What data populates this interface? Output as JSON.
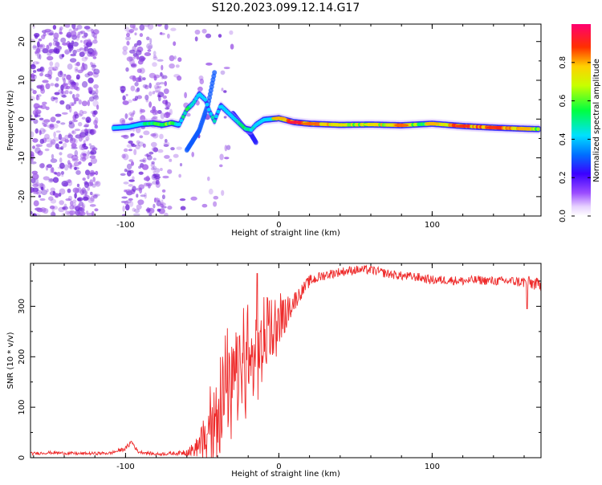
{
  "title": "S120.2023.099.12.14.G17",
  "top_xlabel": "Height of straight line (km)",
  "bottom_xlabel": "Height of straight line (km)",
  "colorbar_label": "Normalized spectral amplitude",
  "colorbar_ticks": [
    "0.0",
    "0.2",
    "0.4",
    "0.6",
    "0.8"
  ],
  "colorbar_ticks_values": [
    0.0,
    0.2,
    0.4,
    0.6,
    0.8
  ],
  "colors": {
    "snr_line": "#ee2a2a",
    "blob_scatter": "#9b55e6",
    "blob_scatter_dark": "#6a1fd6"
  },
  "chart_data": [
    {
      "id": "spectrogram",
      "type": "heatmap",
      "title": "",
      "xlabel": "Height of straight line (km)",
      "ylabel": "Frequency (Hz)",
      "xlim": [
        -162,
        171
      ],
      "ylim": [
        -25,
        24.5
      ],
      "xticks": [
        -100,
        0,
        100
      ],
      "yticks": [
        -20,
        -10,
        0,
        10,
        20
      ],
      "xtick_labels": [
        "-100",
        "0",
        "100"
      ],
      "ytick_labels": [
        "-20",
        "-10",
        "0",
        "10",
        "20"
      ],
      "colorbar": {
        "label": "Normalized spectral amplitude",
        "range": [
          0,
          1
        ],
        "ticks": [
          0.0,
          0.2,
          0.4,
          0.6,
          0.8
        ]
      },
      "track": {
        "x": [
          -108,
          -98,
          -90,
          -82,
          -76,
          -70,
          -65,
          -60,
          -56,
          -52,
          -48,
          -45,
          -42,
          -38,
          -34,
          -30,
          -26,
          -22,
          -18,
          -15,
          -10,
          -5,
          0,
          10,
          20,
          40,
          60,
          80,
          95,
          100,
          120,
          140,
          160,
          170
        ],
        "freq": [
          -2.3,
          -2.0,
          -1.3,
          -1.1,
          -1.5,
          -1.0,
          -1.5,
          2.5,
          4.0,
          6.5,
          5.0,
          1.8,
          -0.5,
          3.5,
          2.0,
          0.5,
          -1.0,
          -2.5,
          -2.8,
          -1.5,
          -0.2,
          0.0,
          0.2,
          -0.8,
          -1.2,
          -1.5,
          -1.4,
          -1.6,
          -1.3,
          -1.2,
          -1.8,
          -2.2,
          -2.5,
          -2.6
        ],
        "amplitude": [
          0.4,
          0.3,
          0.5,
          0.6,
          0.6,
          0.7,
          0.4,
          0.6,
          0.5,
          0.3,
          0.5,
          0.4,
          0.5,
          0.3,
          0.3,
          0.4,
          0.5,
          0.6,
          0.5,
          0.4,
          0.4,
          0.5,
          0.8,
          0.95,
          0.85,
          0.75,
          0.75,
          0.85,
          0.6,
          0.8,
          0.9,
          0.9,
          0.8,
          0.7
        ]
      },
      "branches": [
        {
          "x": [
            -60,
            -52,
            -46,
            -42
          ],
          "freq": [
            -8,
            -3,
            4,
            12
          ],
          "amplitude": 0.3
        },
        {
          "x": [
            -30,
            -24,
            -18,
            -15
          ],
          "freq": [
            1.5,
            -1.5,
            -4,
            -6
          ],
          "amplitude": 0.25
        }
      ]
    },
    {
      "id": "snr",
      "type": "line",
      "title": "",
      "xlabel": "Height of straight line (km)",
      "ylabel": "SNR (10 * v/v)",
      "xlim": [
        -162,
        171
      ],
      "ylim": [
        0,
        385
      ],
      "xticks": [
        -100,
        0,
        100
      ],
      "yticks": [
        0,
        100,
        200,
        300
      ],
      "xtick_labels": [
        "-100",
        "0",
        "100"
      ],
      "ytick_labels": [
        "0",
        "100",
        "200",
        "300"
      ],
      "series": [
        {
          "name": "SNR",
          "x": [
            -162,
            -150,
            -130,
            -110,
            -100,
            -96,
            -92,
            -80,
            -65,
            -55,
            -48,
            -42,
            -36,
            -30,
            -24,
            -18,
            -10,
            -5,
            0,
            5,
            10,
            15,
            20,
            30,
            40,
            50,
            60,
            70,
            80,
            90,
            100,
            110,
            120,
            130,
            140,
            150,
            160,
            165,
            171
          ],
          "y": [
            8,
            10,
            8,
            9,
            18,
            32,
            12,
            7,
            9,
            16,
            40,
            80,
            115,
            150,
            175,
            200,
            225,
            245,
            265,
            290,
            310,
            330,
            350,
            362,
            368,
            372,
            372,
            365,
            360,
            358,
            352,
            352,
            350,
            352,
            350,
            350,
            348,
            346,
            342
          ],
          "noise_amplitude": [
            3,
            3,
            3,
            3,
            4,
            6,
            3,
            3,
            4,
            14,
            45,
            70,
            80,
            85,
            75,
            70,
            60,
            45,
            40,
            30,
            20,
            14,
            12,
            10,
            9,
            9,
            9,
            9,
            9,
            9,
            9,
            9,
            9,
            9,
            9,
            9,
            12,
            14,
            12
          ],
          "color": "#ee2a2a"
        }
      ]
    }
  ]
}
